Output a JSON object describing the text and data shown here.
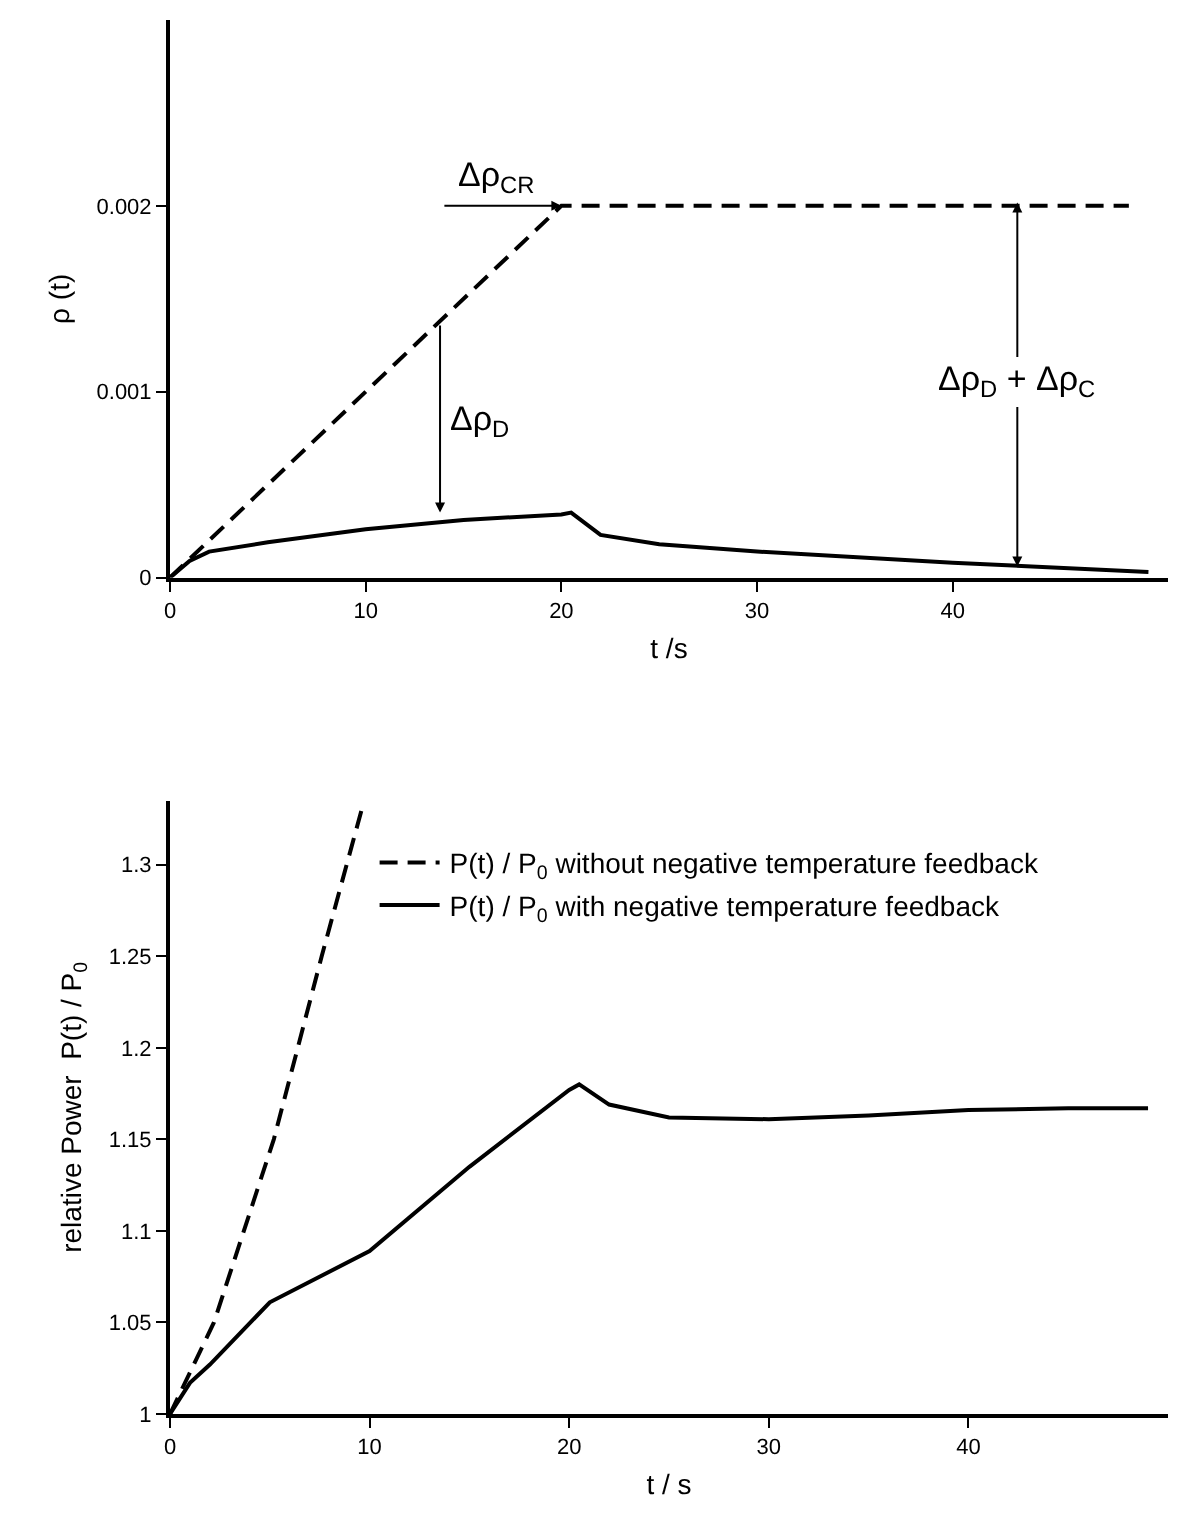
{
  "chart_data": [
    {
      "type": "line",
      "xlabel": "t /s",
      "ylabel": "ρ (t)",
      "xlim": [
        0,
        51
      ],
      "ylim": [
        0,
        0.003
      ],
      "xticks": [
        0,
        10,
        20,
        30,
        40
      ],
      "yticks": [
        0,
        0.001,
        0.002
      ],
      "marker": "none",
      "series": [
        {
          "color": "#000000",
          "line_style": "dashed",
          "x": [
            0,
            20,
            49
          ],
          "values": [
            0,
            0.002,
            0.002
          ]
        },
        {
          "color": "#000000",
          "line_style": "solid",
          "x": [
            0,
            1,
            2,
            5,
            10,
            15,
            20,
            20.5,
            22,
            25,
            30,
            40,
            50
          ],
          "values": [
            0,
            9e-05,
            0.00014,
            0.00019,
            0.00026,
            0.00031,
            0.00034,
            0.00035,
            0.00023,
            0.00018,
            0.00014,
            8e-05,
            3e-05
          ]
        }
      ],
      "annotations": [
        {
          "text": "Δρ$_{CR}$",
          "x": 20,
          "y": 0.002
        },
        {
          "text": "Δρ$_{D}$",
          "x": 13.8,
          "y": 0.00035
        },
        {
          "text": "Δρ$_{D}$ + Δρ$_{C}$",
          "x": 43.3,
          "y": 6e-05
        }
      ]
    },
    {
      "type": "line",
      "xlabel": "t / s",
      "ylabel": "relative Power  P(t) / P$_{0}$",
      "xlim": [
        0,
        50
      ],
      "ylim": [
        1,
        1.335
      ],
      "xticks": [
        0,
        10,
        20,
        30,
        40
      ],
      "yticks": [
        1,
        1.05,
        1.1,
        1.15,
        1.2,
        1.25,
        1.3
      ],
      "legend": "top",
      "marker": "none",
      "series": [
        {
          "name": "P(t) / P$_{0}$ without negative temperature feedback",
          "color": "#000000",
          "line_style": "dashed",
          "x": [
            0,
            2.2,
            5.2,
            7.6,
            9.6
          ],
          "values": [
            1,
            1.05,
            1.15,
            1.25,
            1.33
          ]
        },
        {
          "name": "P(t) / P$_{0}$ with negative temperature feedback",
          "color": "#000000",
          "line_style": "solid",
          "x": [
            0,
            1,
            2,
            5,
            10,
            15,
            20,
            20.5,
            22,
            25,
            30,
            35,
            40,
            45,
            49
          ],
          "values": [
            1,
            1.017,
            1.027,
            1.061,
            1.089,
            1.135,
            1.177,
            1.18,
            1.169,
            1.162,
            1.161,
            1.163,
            1.166,
            1.167,
            1.167
          ]
        }
      ]
    }
  ]
}
